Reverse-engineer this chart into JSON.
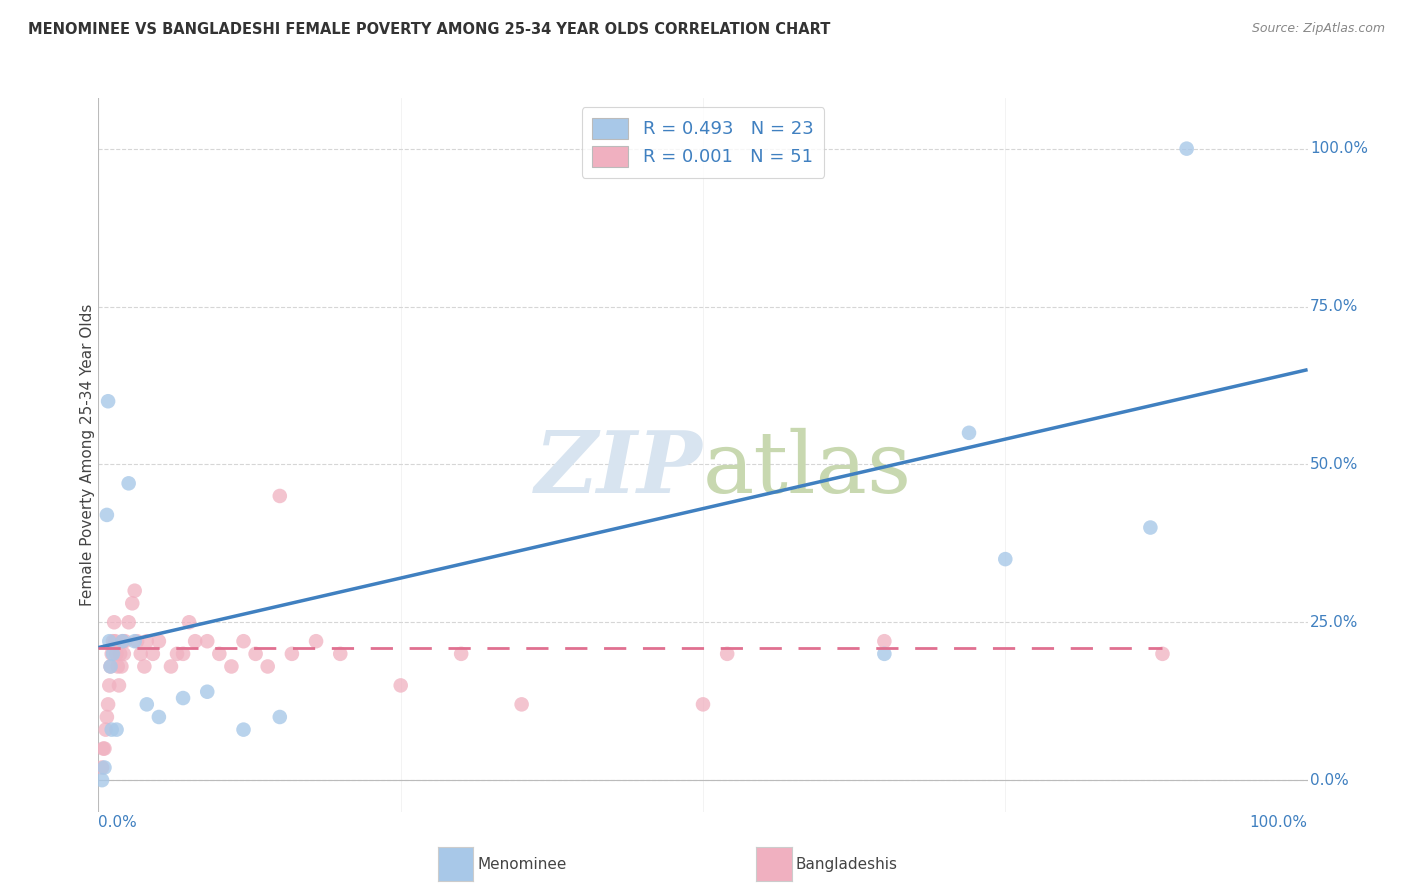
{
  "title": "MENOMINEE VS BANGLADESHI FEMALE POVERTY AMONG 25-34 YEAR OLDS CORRELATION CHART",
  "source": "Source: ZipAtlas.com",
  "ylabel": "Female Poverty Among 25-34 Year Olds",
  "menominee_color": "#a8c8e8",
  "bangladeshi_color": "#f0b0c0",
  "menominee_line_color": "#4080c0",
  "bangladeshi_line_color": "#e07090",
  "R_menominee": "0.493",
  "N_menominee": "23",
  "R_bangladeshi": "0.001",
  "N_bangladeshi": "51",
  "background_color": "#ffffff",
  "grid_color": "#cccccc",
  "watermark_color": "#d8e4f0",
  "right_tick_color": "#4080c0",
  "legend_label_color": "#4080c0",
  "menominee_x": [
    0.003,
    0.005,
    0.007,
    0.008,
    0.009,
    0.01,
    0.011,
    0.012,
    0.015,
    0.02,
    0.025,
    0.03,
    0.04,
    0.05,
    0.07,
    0.09,
    0.12,
    0.15,
    0.65,
    0.72,
    0.75,
    0.87,
    0.9
  ],
  "menominee_y": [
    0.0,
    0.02,
    0.42,
    0.6,
    0.22,
    0.18,
    0.08,
    0.2,
    0.08,
    0.22,
    0.47,
    0.22,
    0.12,
    0.1,
    0.13,
    0.14,
    0.08,
    0.1,
    0.2,
    0.55,
    0.35,
    0.4,
    1.0
  ],
  "bangladeshi_x": [
    0.003,
    0.004,
    0.005,
    0.006,
    0.007,
    0.008,
    0.009,
    0.01,
    0.011,
    0.012,
    0.013,
    0.014,
    0.015,
    0.016,
    0.017,
    0.018,
    0.019,
    0.02,
    0.021,
    0.022,
    0.025,
    0.028,
    0.03,
    0.032,
    0.035,
    0.038,
    0.04,
    0.045,
    0.05,
    0.06,
    0.065,
    0.07,
    0.075,
    0.08,
    0.09,
    0.1,
    0.11,
    0.12,
    0.13,
    0.14,
    0.15,
    0.16,
    0.18,
    0.2,
    0.25,
    0.3,
    0.35,
    0.5,
    0.52,
    0.65,
    0.88
  ],
  "bangladeshi_y": [
    0.02,
    0.05,
    0.05,
    0.08,
    0.1,
    0.12,
    0.15,
    0.18,
    0.2,
    0.22,
    0.25,
    0.22,
    0.2,
    0.18,
    0.15,
    0.2,
    0.18,
    0.22,
    0.2,
    0.22,
    0.25,
    0.28,
    0.3,
    0.22,
    0.2,
    0.18,
    0.22,
    0.2,
    0.22,
    0.18,
    0.2,
    0.2,
    0.25,
    0.22,
    0.22,
    0.2,
    0.18,
    0.22,
    0.2,
    0.18,
    0.45,
    0.2,
    0.22,
    0.2,
    0.15,
    0.2,
    0.12,
    0.12,
    0.2,
    0.22,
    0.2
  ],
  "men_line_x0": 0.0,
  "men_line_y0": 0.21,
  "men_line_x1": 1.0,
  "men_line_y1": 0.65,
  "ban_line_x0": 0.0,
  "ban_line_y0": 0.21,
  "ban_line_x1": 0.88,
  "ban_line_y1": 0.21,
  "xlim": [
    0.0,
    1.0
  ],
  "ylim": [
    -0.05,
    1.08
  ]
}
